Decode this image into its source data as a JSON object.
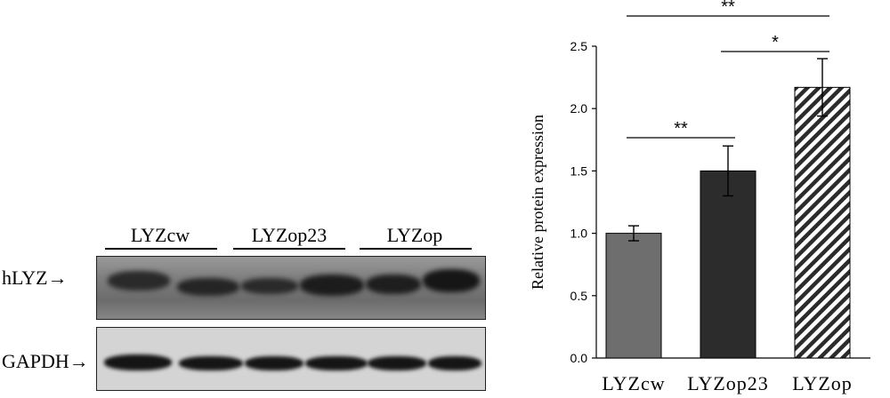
{
  "blot": {
    "groups": [
      {
        "label": "LYZcw"
      },
      {
        "label": "LYZop23"
      },
      {
        "label": "LYZop"
      }
    ],
    "rows": [
      {
        "label": "hLYZ"
      },
      {
        "label": "GAPDH"
      }
    ],
    "arrow_glyph": "→"
  },
  "chart_data": {
    "type": "bar",
    "categories": [
      "LYZcw",
      "LYZop23",
      "LYZop"
    ],
    "values": [
      1.0,
      1.5,
      2.17
    ],
    "errors": [
      0.06,
      0.2,
      0.23
    ],
    "ylabel": "Relative protein expression",
    "xlabel": "",
    "ylim": [
      0,
      2.5
    ],
    "yticks": [
      "0.0",
      "0.5",
      "1.0",
      "1.5",
      "2.0",
      "2.5"
    ],
    "bar_fills": [
      "#6e6e6e",
      "#2c2c2c",
      "hatched"
    ],
    "significance": [
      {
        "from": 0,
        "to": 1,
        "label": "**"
      },
      {
        "from": 1,
        "to": 2,
        "label": "*"
      },
      {
        "from": 0,
        "to": 2,
        "label": "**"
      }
    ]
  }
}
